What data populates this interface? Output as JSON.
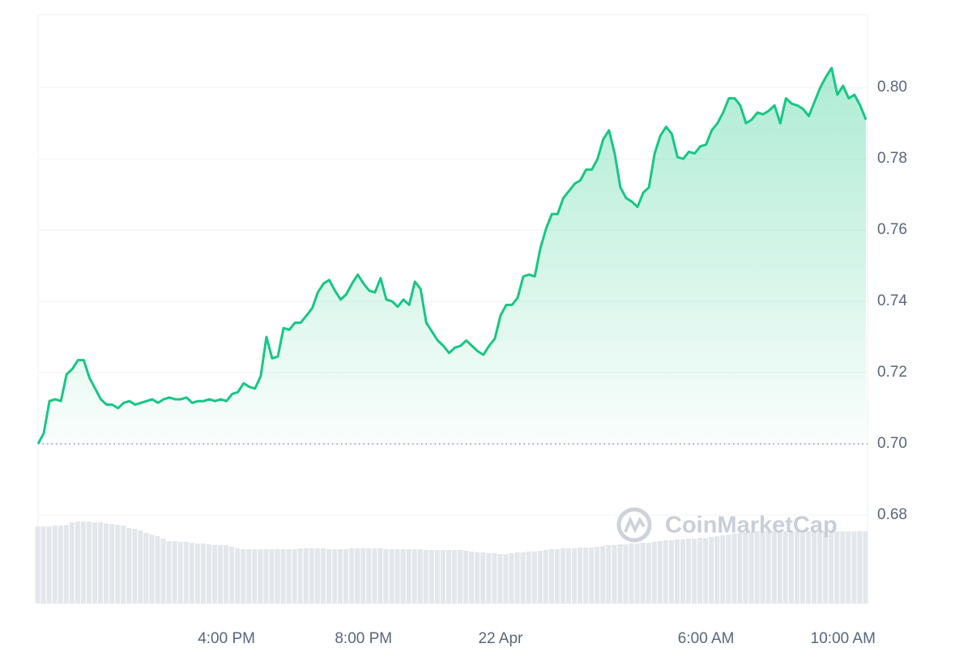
{
  "chart_data": {
    "type": "line",
    "watermark": "CoinMarketCap",
    "color": "#16c784",
    "volume_color": "#e3e7ec",
    "ylim": [
      0.6552,
      0.8205
    ],
    "yticks": [
      0.68,
      {
        "value": 0.7,
        "label": "0.70"
      },
      0.72,
      0.74,
      0.76,
      0.78,
      {
        "value": 0.8,
        "label": "0.80"
      }
    ],
    "grid": true,
    "reference_line": 0.7,
    "categories": [
      null,
      null,
      null,
      null,
      null,
      null,
      null,
      null,
      null,
      null,
      null,
      null,
      null,
      null,
      null,
      null,
      null,
      null,
      null,
      null,
      null,
      null,
      null,
      null,
      null,
      null,
      null,
      null,
      null,
      null,
      null,
      null,
      null,
      "4:00 PM",
      null,
      null,
      null,
      null,
      null,
      null,
      null,
      null,
      null,
      null,
      null,
      null,
      null,
      null,
      null,
      null,
      null,
      null,
      null,
      null,
      null,
      null,
      null,
      "8:00 PM",
      null,
      null,
      null,
      null,
      null,
      null,
      null,
      null,
      null,
      null,
      null,
      null,
      null,
      null,
      null,
      null,
      null,
      null,
      null,
      null,
      null,
      null,
      null,
      "22 Apr",
      null,
      null,
      null,
      null,
      null,
      null,
      null,
      null,
      null,
      null,
      null,
      null,
      null,
      null,
      null,
      null,
      null,
      null,
      null,
      null,
      null,
      null,
      null,
      null,
      null,
      null,
      null,
      null,
      null,
      null,
      null,
      null,
      null,
      null,
      null,
      "6:00 AM",
      null,
      null,
      null,
      null,
      null,
      null,
      null,
      null,
      null,
      null,
      null,
      null,
      null,
      null,
      null,
      null,
      null,
      null,
      null,
      null,
      null,
      null,
      null,
      "10:00 AM",
      null,
      null,
      null,
      null
    ],
    "values": [
      0.7,
      0.703,
      0.712,
      0.7125,
      0.712,
      0.7195,
      0.721,
      0.7235,
      0.7235,
      0.7185,
      0.7155,
      0.7125,
      0.711,
      0.711,
      0.71,
      0.7115,
      0.712,
      0.711,
      0.7115,
      0.712,
      0.7125,
      0.7115,
      0.7125,
      0.713,
      0.7125,
      0.7125,
      0.713,
      0.7115,
      0.712,
      0.712,
      0.7125,
      0.712,
      0.7125,
      0.712,
      0.714,
      0.7145,
      0.717,
      0.716,
      0.7155,
      0.719,
      0.73,
      0.724,
      0.7245,
      0.7325,
      0.732,
      0.734,
      0.734,
      0.736,
      0.738,
      0.7425,
      0.745,
      0.746,
      0.743,
      0.7405,
      0.742,
      0.745,
      0.7475,
      0.745,
      0.743,
      0.7425,
      0.7465,
      0.7405,
      0.74,
      0.7385,
      0.7405,
      0.739,
      0.7455,
      0.7435,
      0.734,
      0.7315,
      0.729,
      0.7275,
      0.7255,
      0.727,
      0.7275,
      0.729,
      0.7275,
      0.726,
      0.725,
      0.7275,
      0.7295,
      0.736,
      0.739,
      0.739,
      0.741,
      0.747,
      0.7475,
      0.747,
      0.755,
      0.7605,
      0.7645,
      0.7645,
      0.769,
      0.771,
      0.773,
      0.774,
      0.777,
      0.777,
      0.78,
      0.7855,
      0.788,
      0.7815,
      0.772,
      0.769,
      0.768,
      0.7665,
      0.7705,
      0.772,
      0.7815,
      0.7865,
      0.789,
      0.787,
      0.7805,
      0.78,
      0.782,
      0.7815,
      0.7835,
      0.784,
      0.788,
      0.79,
      0.793,
      0.797,
      0.797,
      0.795,
      0.79,
      0.791,
      0.793,
      0.7925,
      0.7935,
      0.795,
      0.79,
      0.797,
      0.7955,
      0.795,
      0.794,
      0.792,
      0.796,
      0.8,
      0.803,
      0.8055,
      0.798,
      0.8005,
      0.797,
      0.798,
      0.795,
      0.791
    ],
    "volume": [
      95,
      95,
      95,
      96,
      96,
      97,
      100,
      101,
      101,
      101,
      100,
      100,
      99,
      98,
      97,
      96,
      93,
      92,
      90,
      87,
      85,
      83,
      80,
      77,
      77,
      76,
      76,
      75,
      74,
      74,
      73,
      72,
      72,
      72,
      70,
      68,
      67,
      67,
      67,
      67,
      67,
      67,
      67,
      67,
      67,
      67,
      68,
      68,
      68,
      68,
      68,
      67,
      67,
      67,
      67,
      68,
      68,
      68,
      68,
      68,
      68,
      67,
      67,
      67,
      67,
      67,
      67,
      67,
      66,
      66,
      66,
      66,
      66,
      66,
      66,
      65,
      64,
      63,
      63,
      62,
      62,
      61,
      61,
      62,
      63,
      63,
      64,
      64,
      65,
      66,
      67,
      67,
      68,
      68,
      68,
      69,
      69,
      69,
      70,
      71,
      72,
      72,
      73,
      73,
      74,
      74,
      75,
      75,
      76,
      77,
      78,
      78,
      79,
      79,
      80,
      80,
      81,
      81,
      82,
      83,
      84,
      85,
      86,
      87,
      88,
      88,
      89,
      89,
      89,
      89,
      89,
      89,
      89,
      89,
      89,
      89,
      89,
      89,
      89,
      89,
      89,
      89,
      89,
      89,
      89,
      89
    ]
  }
}
